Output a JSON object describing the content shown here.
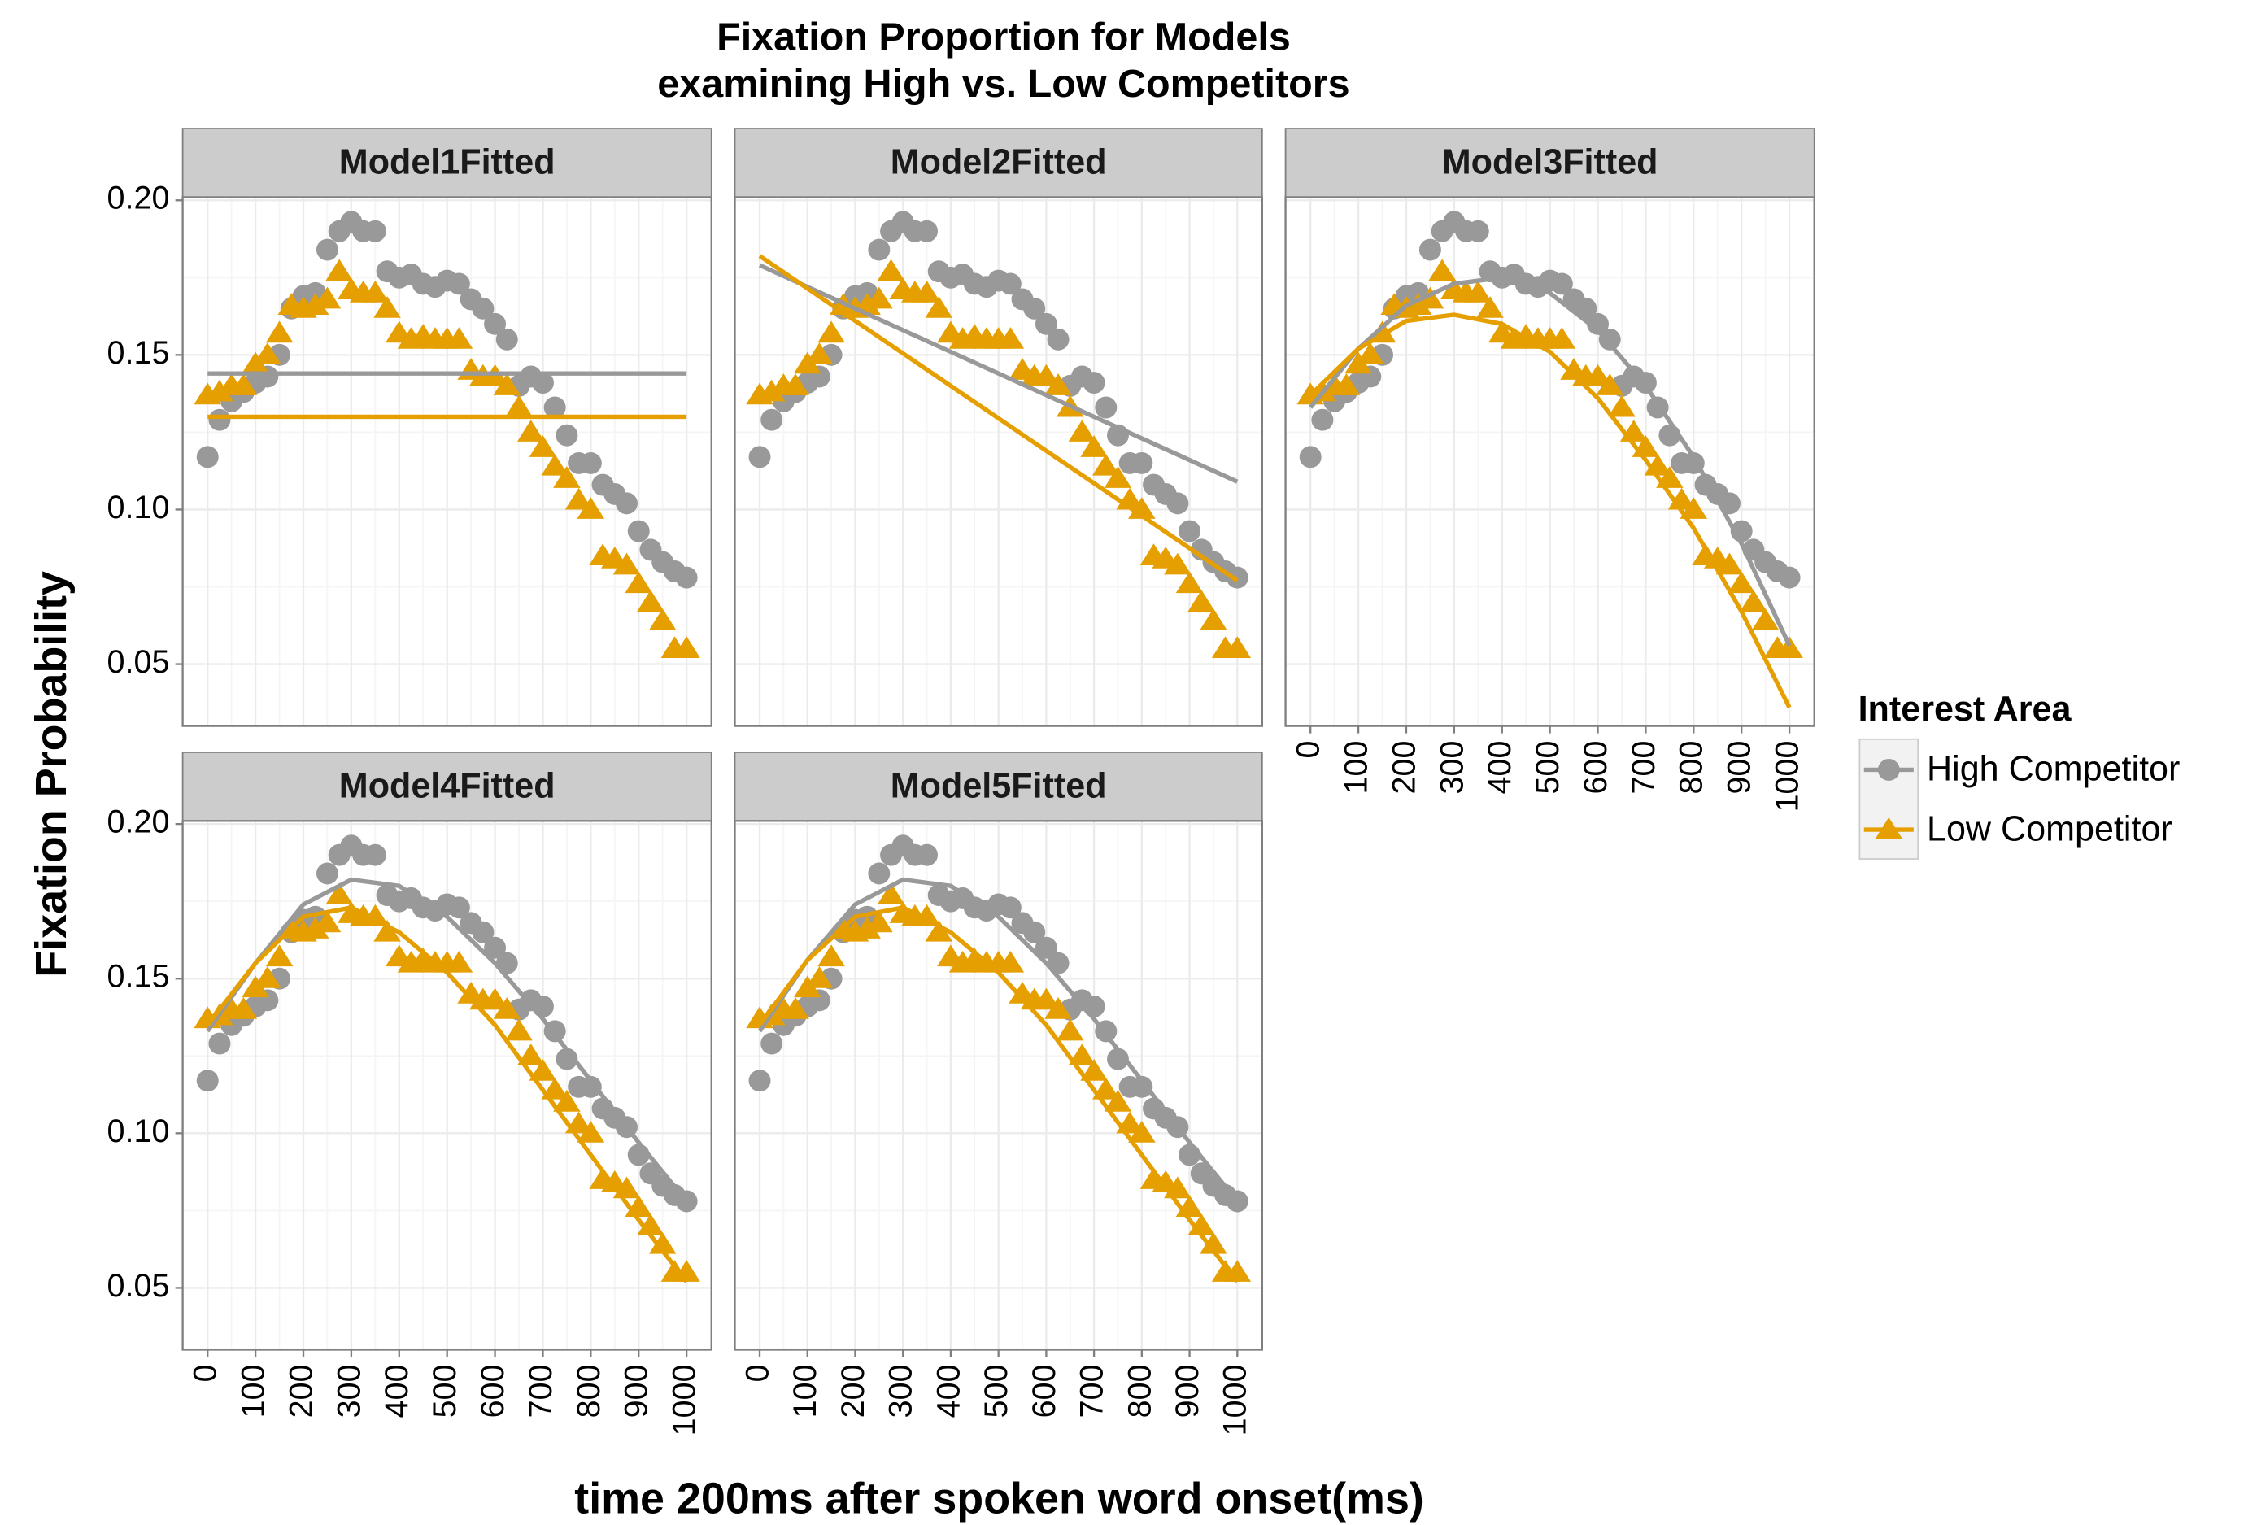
{
  "chart_data": {
    "type": "line",
    "title": "Fixation Proportion for Models",
    "subtitle": "examining High vs. Low Competitors",
    "x_label": "time 200ms after spoken word onset(ms)",
    "y_label": "Fixation Probability",
    "legend_title": "Interest Area",
    "xlim": [
      -52,
      1052
    ],
    "xticks": [
      0,
      100,
      200,
      300,
      400,
      500,
      600,
      700,
      800,
      900,
      1000
    ],
    "ylim": [
      0.03,
      0.201
    ],
    "yticks": [
      0.05,
      {
        "value": 0.1,
        "label": "0.10"
      },
      0.15,
      {
        "value": 0.2,
        "label": "0.20"
      }
    ],
    "grid": true,
    "x": [
      0,
      25,
      50,
      75,
      100,
      125,
      150,
      175,
      200,
      225,
      250,
      275,
      300,
      325,
      350,
      375,
      400,
      425,
      450,
      475,
      500,
      525,
      550,
      575,
      600,
      625,
      650,
      675,
      700,
      725,
      750,
      775,
      800,
      825,
      850,
      875,
      900,
      925,
      950,
      975,
      1000
    ],
    "series": [
      {
        "name": "High Competitor",
        "color": "#999999",
        "marker": "circle",
        "values": [
          0.117,
          0.129,
          0.135,
          0.138,
          0.141,
          0.143,
          0.15,
          0.165,
          0.169,
          0.17,
          0.184,
          0.19,
          0.193,
          0.19,
          0.19,
          0.177,
          0.175,
          0.176,
          0.173,
          0.172,
          0.174,
          0.173,
          0.168,
          0.165,
          0.16,
          0.155,
          0.14,
          0.143,
          0.141,
          0.133,
          0.124,
          0.115,
          0.115,
          0.108,
          0.105,
          0.102,
          0.093,
          0.087,
          0.083,
          0.08,
          0.078
        ]
      },
      {
        "name": "Low Competitor",
        "color": "#E69F00",
        "marker": "triangle",
        "values": [
          0.137,
          0.138,
          0.14,
          0.14,
          0.147,
          0.15,
          0.157,
          0.166,
          0.165,
          0.166,
          0.168,
          0.177,
          0.171,
          0.17,
          0.17,
          0.165,
          0.157,
          0.155,
          0.156,
          0.155,
          0.155,
          0.155,
          0.145,
          0.143,
          0.143,
          0.14,
          0.133,
          0.125,
          0.12,
          0.114,
          0.11,
          0.103,
          0.1,
          0.085,
          0.084,
          0.082,
          0.076,
          0.07,
          0.064,
          0.055,
          0.055
        ]
      }
    ],
    "fit_x": [
      0,
      100,
      200,
      300,
      400,
      500,
      600,
      700,
      800,
      900,
      1000
    ],
    "panels": [
      {
        "title": "Model1Fitted",
        "fits": [
          [
            0.144,
            0.144,
            0.144,
            0.144,
            0.144,
            0.144,
            0.144,
            0.144,
            0.144,
            0.144,
            0.144
          ],
          [
            0.13,
            0.13,
            0.13,
            0.13,
            0.13,
            0.13,
            0.13,
            0.13,
            0.13,
            0.13,
            0.13
          ]
        ]
      },
      {
        "title": "Model2Fitted",
        "fits": [
          [
            0.179,
            0.172,
            0.165,
            0.158,
            0.151,
            0.144,
            0.137,
            0.13,
            0.123,
            0.116,
            0.109
          ],
          [
            0.182,
            0.1715,
            0.161,
            0.1505,
            0.14,
            0.1295,
            0.119,
            0.1085,
            0.098,
            0.0875,
            0.077
          ]
        ]
      },
      {
        "title": "Model3Fitted",
        "fits": [
          [
            0.133,
            0.152,
            0.166,
            0.173,
            0.175,
            0.17,
            0.158,
            0.14,
            0.117,
            0.089,
            0.056
          ],
          [
            0.137,
            0.152,
            0.161,
            0.163,
            0.16,
            0.151,
            0.136,
            0.116,
            0.094,
            0.067,
            0.036
          ]
        ]
      },
      {
        "title": "Model4Fitted",
        "fits": [
          [
            0.133,
            0.155,
            0.174,
            0.182,
            0.18,
            0.17,
            0.155,
            0.137,
            0.117,
            0.097,
            0.078
          ],
          [
            0.135,
            0.155,
            0.17,
            0.173,
            0.165,
            0.152,
            0.135,
            0.114,
            0.093,
            0.072,
            0.052
          ]
        ]
      },
      {
        "title": "Model5Fitted",
        "fits": [
          [
            0.133,
            0.156,
            0.174,
            0.182,
            0.18,
            0.17,
            0.155,
            0.137,
            0.117,
            0.097,
            0.078
          ],
          [
            0.135,
            0.156,
            0.17,
            0.173,
            0.165,
            0.152,
            0.135,
            0.114,
            0.093,
            0.072,
            0.052
          ]
        ]
      }
    ]
  }
}
